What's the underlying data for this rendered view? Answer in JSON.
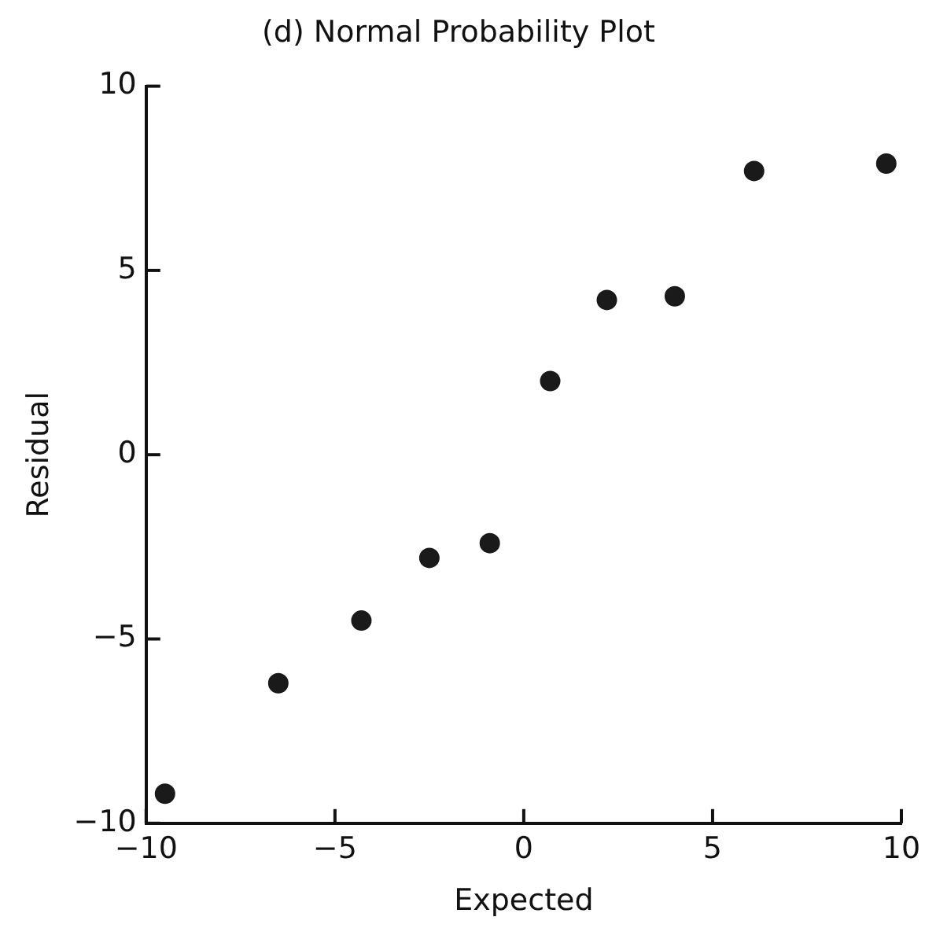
{
  "chart_data": {
    "type": "scatter",
    "title": "(d) Normal Probability Plot",
    "xlabel": "Expected",
    "ylabel": "Residual",
    "series": [
      {
        "color": "#1a1a1a",
        "x": [
          -9.5,
          -6.5,
          -4.3,
          -2.5,
          -0.9,
          0.7,
          2.2,
          4.0,
          6.1,
          9.6
        ],
        "values": [
          -9.2,
          -6.2,
          -4.5,
          -2.8,
          -2.4,
          2.0,
          4.2,
          4.3,
          7.7,
          7.9
        ]
      }
    ],
    "xlim": [
      -10,
      10
    ],
    "xticks": [
      -10,
      -5,
      0,
      5,
      10
    ],
    "ylim": [
      -10,
      10
    ],
    "yticks": [
      -10,
      -5,
      0,
      5,
      10
    ],
    "grid": false,
    "legend": false,
    "marker": "circle"
  }
}
